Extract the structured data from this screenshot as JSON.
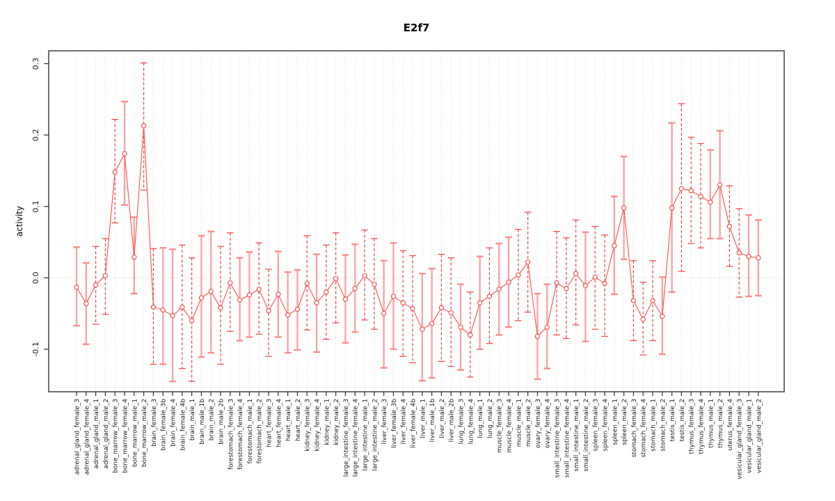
{
  "figure": {
    "background": "#ffffff"
  },
  "chart_data": {
    "type": "scatter",
    "title": "E2f7",
    "ylabel": "activity",
    "xlabel": "",
    "ylim": [
      -0.16,
      0.318
    ],
    "yticks": [
      -0.1,
      0.0,
      0.1,
      0.2,
      0.3
    ],
    "ytick_labels": [
      "-0.1",
      "0.0",
      "0.1",
      "0.2",
      "0.3"
    ],
    "grid": "dotted vertical line per category, dotted horizontal line at y=0",
    "legend": "none",
    "marker": "open-circle",
    "colors": {
      "line": "#ff4d4d",
      "point_stroke": "#ff4343",
      "point_fill": "#ffffff",
      "errorbar_dashed": "#f04343",
      "errorbar_solid": "#ffa3a3",
      "errorbar_solid_cap": "#ff8d8d",
      "gridline": "#d4d4d4",
      "zero_line": "#c9c9c9",
      "box": "#4d4d4d",
      "tick": "#303030",
      "text": "#1c1c1c"
    },
    "categories": [
      "adrenal_gland_female_3",
      "adrenal_gland_female_4",
      "adrenal_gland_male_1",
      "adrenal_gland_male_2",
      "bone_marrow_female_3",
      "bone_marrow_female_4",
      "bone_marrow_male_1",
      "bone_marrow_male_2",
      "brain_female_3",
      "brain_female_3b",
      "brain_female_4",
      "brain_female_4b",
      "brain_male_1",
      "brain_male_1b",
      "brain_male_2",
      "brain_male_2b",
      "forestomach_female_3",
      "forestomach_female_4",
      "forestomach_male_1",
      "forestomach_male_2",
      "heart_female_3",
      "heart_female_4",
      "heart_male_1",
      "heart_male_2",
      "kidney_female_3",
      "kidney_female_4",
      "kidney_male_1",
      "kidney_male_2",
      "large_intestine_female_3",
      "large_intestine_female_4",
      "large_intestine_male_1",
      "large_intestine_male_2",
      "liver_female_3",
      "liver_female_3b",
      "liver_female_4",
      "liver_female_4b",
      "liver_male_1",
      "liver_male_1b",
      "liver_male_2",
      "liver_male_2b",
      "lung_female_3",
      "lung_female_4",
      "lung_male_1",
      "lung_male_2",
      "muscle_female_3",
      "muscle_female_4",
      "muscle_male_1",
      "muscle_male_2",
      "ovary_female_3",
      "ovary_female_4",
      "small_intestine_female_3",
      "small_intestine_female_4",
      "small_intestine_male_1",
      "small_intestine_male_2",
      "spleen_female_3",
      "spleen_female_4",
      "spleen_male_1",
      "spleen_male_2",
      "stomach_female_3",
      "stomach_female_4",
      "stomach_male_1",
      "stomach_male_2",
      "testis_male_1",
      "testis_male_2",
      "thymus_female_3",
      "thymus_female_4",
      "thymus_male_1",
      "thymus_male_2",
      "uterus_female_4",
      "vesicular_gland_female_3",
      "vesicular_gland_male_1",
      "vesicular_gland_male_2"
    ],
    "series": [
      {
        "name": "activity",
        "values": [
          -0.013,
          -0.036,
          -0.01,
          0.003,
          0.148,
          0.174,
          0.029,
          0.213,
          -0.041,
          -0.045,
          -0.053,
          -0.041,
          -0.06,
          -0.028,
          -0.019,
          -0.042,
          -0.007,
          -0.031,
          -0.024,
          -0.016,
          -0.046,
          -0.023,
          -0.052,
          -0.044,
          -0.008,
          -0.035,
          -0.02,
          -0.001,
          -0.03,
          -0.015,
          0.003,
          -0.009,
          -0.05,
          -0.026,
          -0.035,
          -0.043,
          -0.072,
          -0.064,
          -0.042,
          -0.049,
          -0.069,
          -0.08,
          -0.035,
          -0.026,
          -0.016,
          -0.006,
          0.004,
          0.022,
          -0.082,
          -0.069,
          -0.007,
          -0.015,
          0.006,
          -0.011,
          0.001,
          -0.008,
          0.045,
          0.098,
          -0.032,
          -0.058,
          -0.032,
          -0.054,
          0.098,
          0.125,
          0.122,
          0.114,
          0.106,
          0.13,
          0.072,
          0.035,
          0.03,
          0.028
        ],
        "err_hi": [
          0.043,
          0.021,
          0.044,
          0.055,
          0.222,
          0.247,
          0.085,
          0.301,
          0.041,
          0.042,
          0.04,
          0.046,
          0.028,
          0.059,
          0.065,
          0.044,
          0.063,
          0.028,
          0.036,
          0.049,
          0.012,
          0.037,
          0.008,
          0.011,
          0.059,
          0.033,
          0.046,
          0.063,
          0.032,
          0.047,
          0.067,
          0.055,
          0.024,
          0.049,
          0.038,
          0.031,
          0.006,
          0.013,
          0.033,
          0.028,
          -0.009,
          -0.02,
          0.03,
          0.042,
          0.048,
          0.057,
          0.068,
          0.092,
          -0.022,
          -0.009,
          0.065,
          0.056,
          0.081,
          0.064,
          0.072,
          0.06,
          0.114,
          0.17,
          0.024,
          -0.006,
          0.024,
          0.001,
          0.217,
          0.244,
          0.197,
          0.188,
          0.179,
          0.206,
          0.129,
          0.097,
          0.088,
          0.081
        ],
        "err_lo": [
          -0.067,
          -0.093,
          -0.065,
          -0.051,
          0.077,
          0.102,
          -0.022,
          0.123,
          -0.121,
          -0.121,
          -0.145,
          -0.127,
          -0.145,
          -0.111,
          -0.105,
          -0.121,
          -0.075,
          -0.088,
          -0.083,
          -0.079,
          -0.11,
          -0.083,
          -0.105,
          -0.101,
          -0.073,
          -0.104,
          -0.086,
          -0.063,
          -0.091,
          -0.076,
          -0.059,
          -0.072,
          -0.126,
          -0.1,
          -0.11,
          -0.119,
          -0.144,
          -0.14,
          -0.117,
          -0.124,
          -0.129,
          -0.139,
          -0.1,
          -0.092,
          -0.08,
          -0.069,
          -0.06,
          -0.048,
          -0.142,
          -0.127,
          -0.08,
          -0.085,
          -0.066,
          -0.089,
          -0.072,
          -0.082,
          -0.023,
          0.026,
          -0.088,
          -0.108,
          -0.088,
          -0.107,
          -0.02,
          0.009,
          0.048,
          0.042,
          0.055,
          0.055,
          0.016,
          -0.027,
          -0.026,
          -0.025
        ],
        "bar_style": [
          "s",
          "s",
          "d",
          "d",
          "d",
          "s",
          "s",
          "d",
          "d",
          "s",
          "s",
          "d",
          "d",
          "s",
          "s",
          "d",
          "d",
          "s",
          "s",
          "d",
          "d",
          "s",
          "s",
          "s",
          "d",
          "s",
          "d",
          "d",
          "s",
          "s",
          "d",
          "d",
          "s",
          "s",
          "d",
          "d",
          "s",
          "s",
          "d",
          "d",
          "s",
          "d",
          "s",
          "d",
          "s",
          "s",
          "d",
          "d",
          "s",
          "s",
          "d",
          "d",
          "d",
          "s",
          "d",
          "d",
          "s",
          "s",
          "d",
          "d",
          "d",
          "s",
          "s",
          "d",
          "d",
          "d",
          "s",
          "s",
          "d",
          "d",
          "s",
          "s"
        ]
      }
    ]
  }
}
